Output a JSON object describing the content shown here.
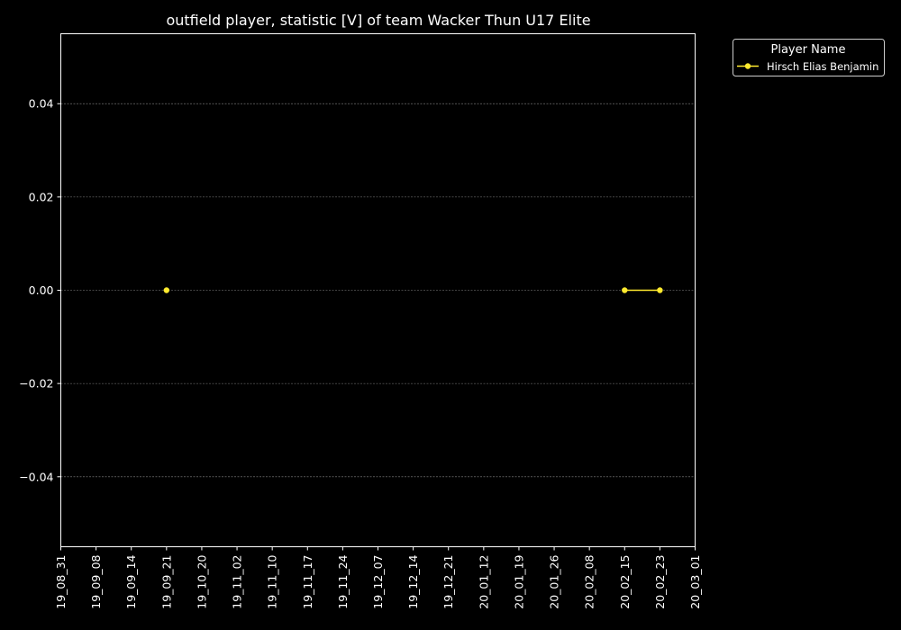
{
  "chart_data": {
    "type": "line",
    "title": "outfield player, statistic [V] of team Wacker Thun U17 Elite",
    "xlabel": "",
    "ylabel": "",
    "categories": [
      "19_08_31",
      "19_09_08",
      "19_09_14",
      "19_09_21",
      "19_10_20",
      "19_11_02",
      "19_11_10",
      "19_11_17",
      "19_11_24",
      "19_12_07",
      "19_12_14",
      "19_12_21",
      "20_01_12",
      "20_01_19",
      "20_01_26",
      "20_02_08",
      "20_02_15",
      "20_02_23",
      "20_03_01"
    ],
    "yticks": [
      "0.04",
      "0.02",
      "0.00",
      "−0.02",
      "−0.04"
    ],
    "ylim": [
      -0.055,
      0.055
    ],
    "grid": true,
    "legend": {
      "title": "Player Name",
      "placement": "outside top-right"
    },
    "series": [
      {
        "name": "Hirsch Elias Benjamin",
        "color": "#ffea2e",
        "points": [
          {
            "x": "19_09_21",
            "y": 0.0
          },
          {
            "x": "20_02_15",
            "y": 0.0
          },
          {
            "x": "20_02_23",
            "y": 0.0
          }
        ],
        "segments": [
          [
            "20_02_15",
            "20_02_23"
          ]
        ]
      }
    ],
    "colors": {
      "background": "#000000",
      "axes": "#ffffff",
      "grid": "#888888"
    }
  }
}
